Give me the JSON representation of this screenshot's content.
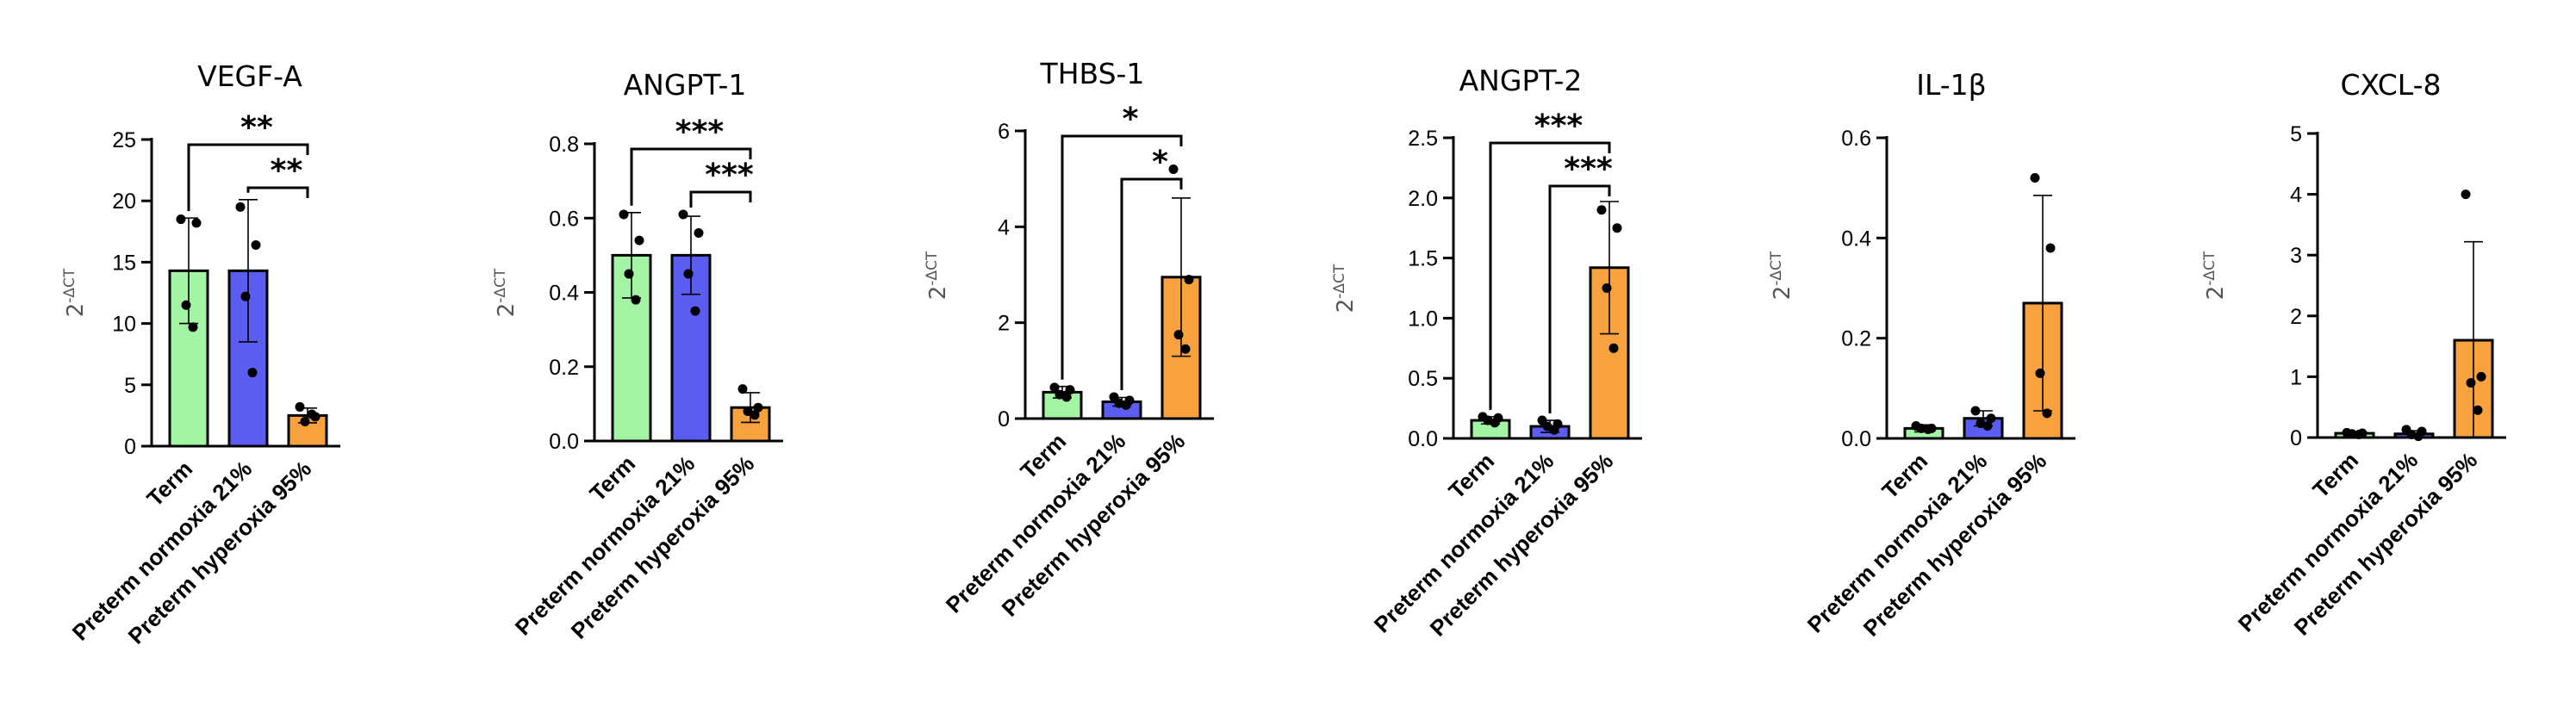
{
  "chart_data": [
    {
      "type": "bar",
      "title": "VEGF-A",
      "ylabel": "2-ΔCT",
      "ylim": [
        0,
        25
      ],
      "yticks": [
        0,
        5,
        10,
        15,
        20,
        25
      ],
      "categories": [
        "Term",
        "Preterm normoxia 21%",
        "Preterm hyperoxia 95%"
      ],
      "values": [
        14.3,
        14.3,
        2.5
      ],
      "errors": [
        4.3,
        5.8,
        0.6
      ],
      "points": [
        [
          18.5,
          18.2,
          11.5,
          9.7
        ],
        [
          19.5,
          16.4,
          12.2,
          6.0
        ],
        [
          3.2,
          2.4,
          2.0,
          2.6
        ]
      ],
      "significance": [
        {
          "from": 0,
          "to": 2,
          "label": "**"
        },
        {
          "from": 1,
          "to": 2,
          "label": "**"
        }
      ]
    },
    {
      "type": "bar",
      "title": "ANGPT-1",
      "ylabel": "2-ΔCT",
      "ylim": [
        0,
        0.8
      ],
      "yticks": [
        0.0,
        0.2,
        0.4,
        0.6,
        0.8
      ],
      "tick_decimals": 1,
      "categories": [
        "Term",
        "Preterm normoxia 21%",
        "Preterm hyperoxia 95%"
      ],
      "values": [
        0.5,
        0.5,
        0.09
      ],
      "errors": [
        0.115,
        0.105,
        0.04
      ],
      "points": [
        [
          0.61,
          0.54,
          0.45,
          0.38
        ],
        [
          0.61,
          0.56,
          0.45,
          0.35
        ],
        [
          0.14,
          0.09,
          0.08,
          0.07
        ]
      ],
      "significance": [
        {
          "from": 0,
          "to": 2,
          "label": "***"
        },
        {
          "from": 1,
          "to": 2,
          "label": "***"
        }
      ]
    },
    {
      "type": "bar",
      "title": "THBS-1",
      "ylabel": "2-ΔCT",
      "ylim": [
        0,
        6
      ],
      "yticks": [
        0,
        2,
        4,
        6
      ],
      "categories": [
        "Term",
        "Preterm normoxia 21%",
        "Preterm hyperoxia 95%"
      ],
      "values": [
        0.55,
        0.35,
        2.95
      ],
      "errors": [
        0.12,
        0.09,
        1.65
      ],
      "points": [
        [
          0.65,
          0.6,
          0.5,
          0.45
        ],
        [
          0.45,
          0.38,
          0.32,
          0.28
        ],
        [
          5.2,
          2.9,
          1.75,
          1.45
        ]
      ],
      "significance": [
        {
          "from": 0,
          "to": 2,
          "label": "*"
        },
        {
          "from": 1,
          "to": 2,
          "label": "*"
        }
      ]
    },
    {
      "type": "bar",
      "title": "ANGPT-2",
      "ylabel": "2-ΔCT",
      "ylim": [
        0,
        2.5
      ],
      "yticks": [
        0.0,
        0.5,
        1.0,
        1.5,
        2.0,
        2.5
      ],
      "tick_decimals": 1,
      "categories": [
        "Term",
        "Preterm normoxia 21%",
        "Preterm hyperoxia 95%"
      ],
      "values": [
        0.15,
        0.1,
        1.42
      ],
      "errors": [
        0.03,
        0.05,
        0.55
      ],
      "points": [
        [
          0.18,
          0.17,
          0.15,
          0.13
        ],
        [
          0.15,
          0.12,
          0.1,
          0.07
        ],
        [
          1.9,
          1.75,
          1.25,
          0.75
        ]
      ],
      "significance": [
        {
          "from": 0,
          "to": 2,
          "label": "***"
        },
        {
          "from": 1,
          "to": 2,
          "label": "***"
        }
      ]
    },
    {
      "type": "bar",
      "title": "IL-1β",
      "ylabel": "2-ΔCT",
      "ylim": [
        0,
        0.6
      ],
      "yticks": [
        0.0,
        0.2,
        0.4,
        0.6
      ],
      "tick_decimals": 1,
      "categories": [
        "Term",
        "Preterm normoxia 21%",
        "Preterm hyperoxia 95%"
      ],
      "values": [
        0.02,
        0.04,
        0.27
      ],
      "errors": [
        0.007,
        0.015,
        0.215
      ],
      "points": [
        [
          0.025,
          0.02,
          0.02,
          0.018
        ],
        [
          0.055,
          0.04,
          0.03,
          0.025
        ],
        [
          0.52,
          0.38,
          0.13,
          0.05
        ]
      ],
      "significance": []
    },
    {
      "type": "bar",
      "title": "CXCL-8",
      "ylabel": "2-ΔCT",
      "ylim": [
        0,
        5
      ],
      "yticks": [
        0,
        1,
        2,
        3,
        4,
        5
      ],
      "categories": [
        "Term",
        "Preterm normoxia 21%",
        "Preterm hyperoxia 95%"
      ],
      "values": [
        0.07,
        0.06,
        1.6
      ],
      "errors": [
        0.02,
        0.05,
        1.62
      ],
      "points": [
        [
          0.08,
          0.07,
          0.06,
          0.05
        ],
        [
          0.13,
          0.1,
          0.05,
          0.02
        ],
        [
          4.0,
          1.0,
          0.9,
          0.45
        ]
      ],
      "significance": []
    }
  ],
  "colors": {
    "term": "#a3f5a5",
    "normoxia": "#5b5cf0",
    "hyperoxia": "#f8a13f",
    "axis": "#000000",
    "ylabel": "#555555"
  }
}
